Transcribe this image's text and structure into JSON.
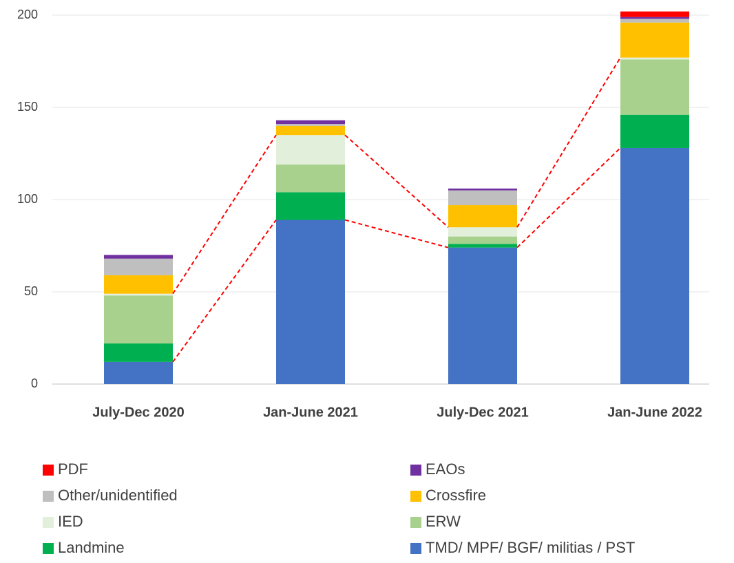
{
  "chart_data": {
    "type": "bar",
    "stacked": true,
    "categories": [
      "July-Dec 2020",
      "Jan-June 2021",
      "July-Dec 2021",
      "Jan-June 2022"
    ],
    "series": [
      {
        "name": "TMD/ MPF/ BGF/ militias / PST",
        "color": "#4472c4",
        "values": [
          12,
          89,
          74,
          128
        ]
      },
      {
        "name": "Landmine",
        "color": "#00b050",
        "values": [
          10,
          15,
          2,
          18
        ]
      },
      {
        "name": "ERW",
        "color": "#a9d18e",
        "values": [
          26,
          15,
          4,
          30
        ]
      },
      {
        "name": "IED",
        "color": "#e2efda",
        "values": [
          1,
          16,
          5,
          1
        ]
      },
      {
        "name": "Crossfire",
        "color": "#ffc000",
        "values": [
          10,
          5,
          12,
          19
        ]
      },
      {
        "name": "Other/unidentified",
        "color": "#bfbfbf",
        "values": [
          9,
          1,
          8,
          2
        ]
      },
      {
        "name": "EAOs",
        "color": "#7030a0",
        "values": [
          2,
          2,
          1,
          1
        ]
      },
      {
        "name": "PDF",
        "color": "#ff0000",
        "values": [
          0,
          0,
          0,
          3
        ]
      }
    ],
    "ylim": [
      0,
      200
    ],
    "yticks": [
      0,
      50,
      100,
      150,
      200
    ],
    "grid": true,
    "legend": "bottom"
  }
}
